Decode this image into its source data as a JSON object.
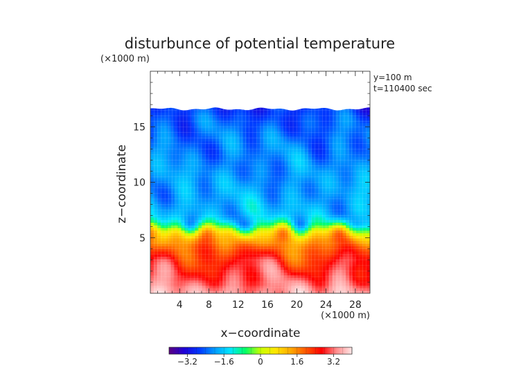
{
  "chart_data": {
    "type": "heatmap",
    "title": "disturbunce of potential temperature",
    "units_top": "(×1000 m)",
    "annotation": [
      "y=100 m",
      "t=110400 sec"
    ],
    "xlabel": "x−coordinate",
    "ylabel": "z−coordinate",
    "x_unit_label": "(×1000 m)",
    "xlim": [
      0,
      30
    ],
    "ylim": [
      0,
      20
    ],
    "x_ticks": [
      4,
      8,
      12,
      16,
      20,
      24,
      28
    ],
    "x_tick_labels": [
      "4",
      "8",
      "12",
      "16",
      "20",
      "24",
      "28"
    ],
    "y_ticks": [
      5,
      10,
      15
    ],
    "y_tick_labels": [
      "5",
      "10",
      "15"
    ],
    "data_top": 16.6,
    "colorbar": {
      "min": -4,
      "max": 4,
      "ticks": [
        -3.2,
        -1.6,
        0,
        1.6,
        3.2
      ],
      "tick_labels": [
        "−3.2",
        "−1.6",
        "0",
        "1.6",
        "3.2"
      ]
    },
    "colors": {
      "axis": "#222222",
      "grid": "#ffffff",
      "colormap": [
        "#5a0080",
        "#1e00d8",
        "#0038ff",
        "#009cff",
        "#00e6ff",
        "#00ff66",
        "#c8ff00",
        "#ffe600",
        "#ffa800",
        "#ff5500",
        "#ff0000",
        "#ff8f8f",
        "#ffe6e6"
      ]
    },
    "profile": {
      "z": [
        0,
        1,
        2,
        3,
        4,
        5,
        5.6,
        6.0,
        6.4,
        7.0,
        8.5,
        10,
        12,
        14,
        15.5,
        16.6
      ],
      "values": [
        3.5,
        3.1,
        2.8,
        2.5,
        2.0,
        1.25,
        0.4,
        -0.6,
        -1.3,
        -1.7,
        -1.9,
        -2.0,
        -2.15,
        -2.25,
        -2.45,
        -2.7
      ]
    }
  }
}
